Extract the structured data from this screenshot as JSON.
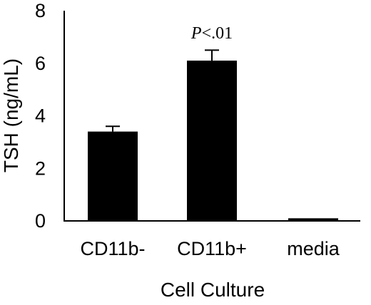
{
  "chart_data": {
    "type": "bar",
    "categories": [
      "CD11b-",
      "CD11b+",
      "media"
    ],
    "values": [
      3.4,
      6.1,
      0.1
    ],
    "errors": [
      0.2,
      0.4,
      0
    ],
    "xlabel": "Cell Culture",
    "ylabel": "TSH (ng/mL)",
    "ylim": [
      0,
      8
    ],
    "yticks": [
      "0",
      "2",
      "4",
      "6",
      "8"
    ],
    "grid": false,
    "annotations": [
      {
        "category": "CD11b+",
        "text_italic": "P",
        "text_rest": "<.01"
      }
    ],
    "bar_color": "#000000"
  }
}
